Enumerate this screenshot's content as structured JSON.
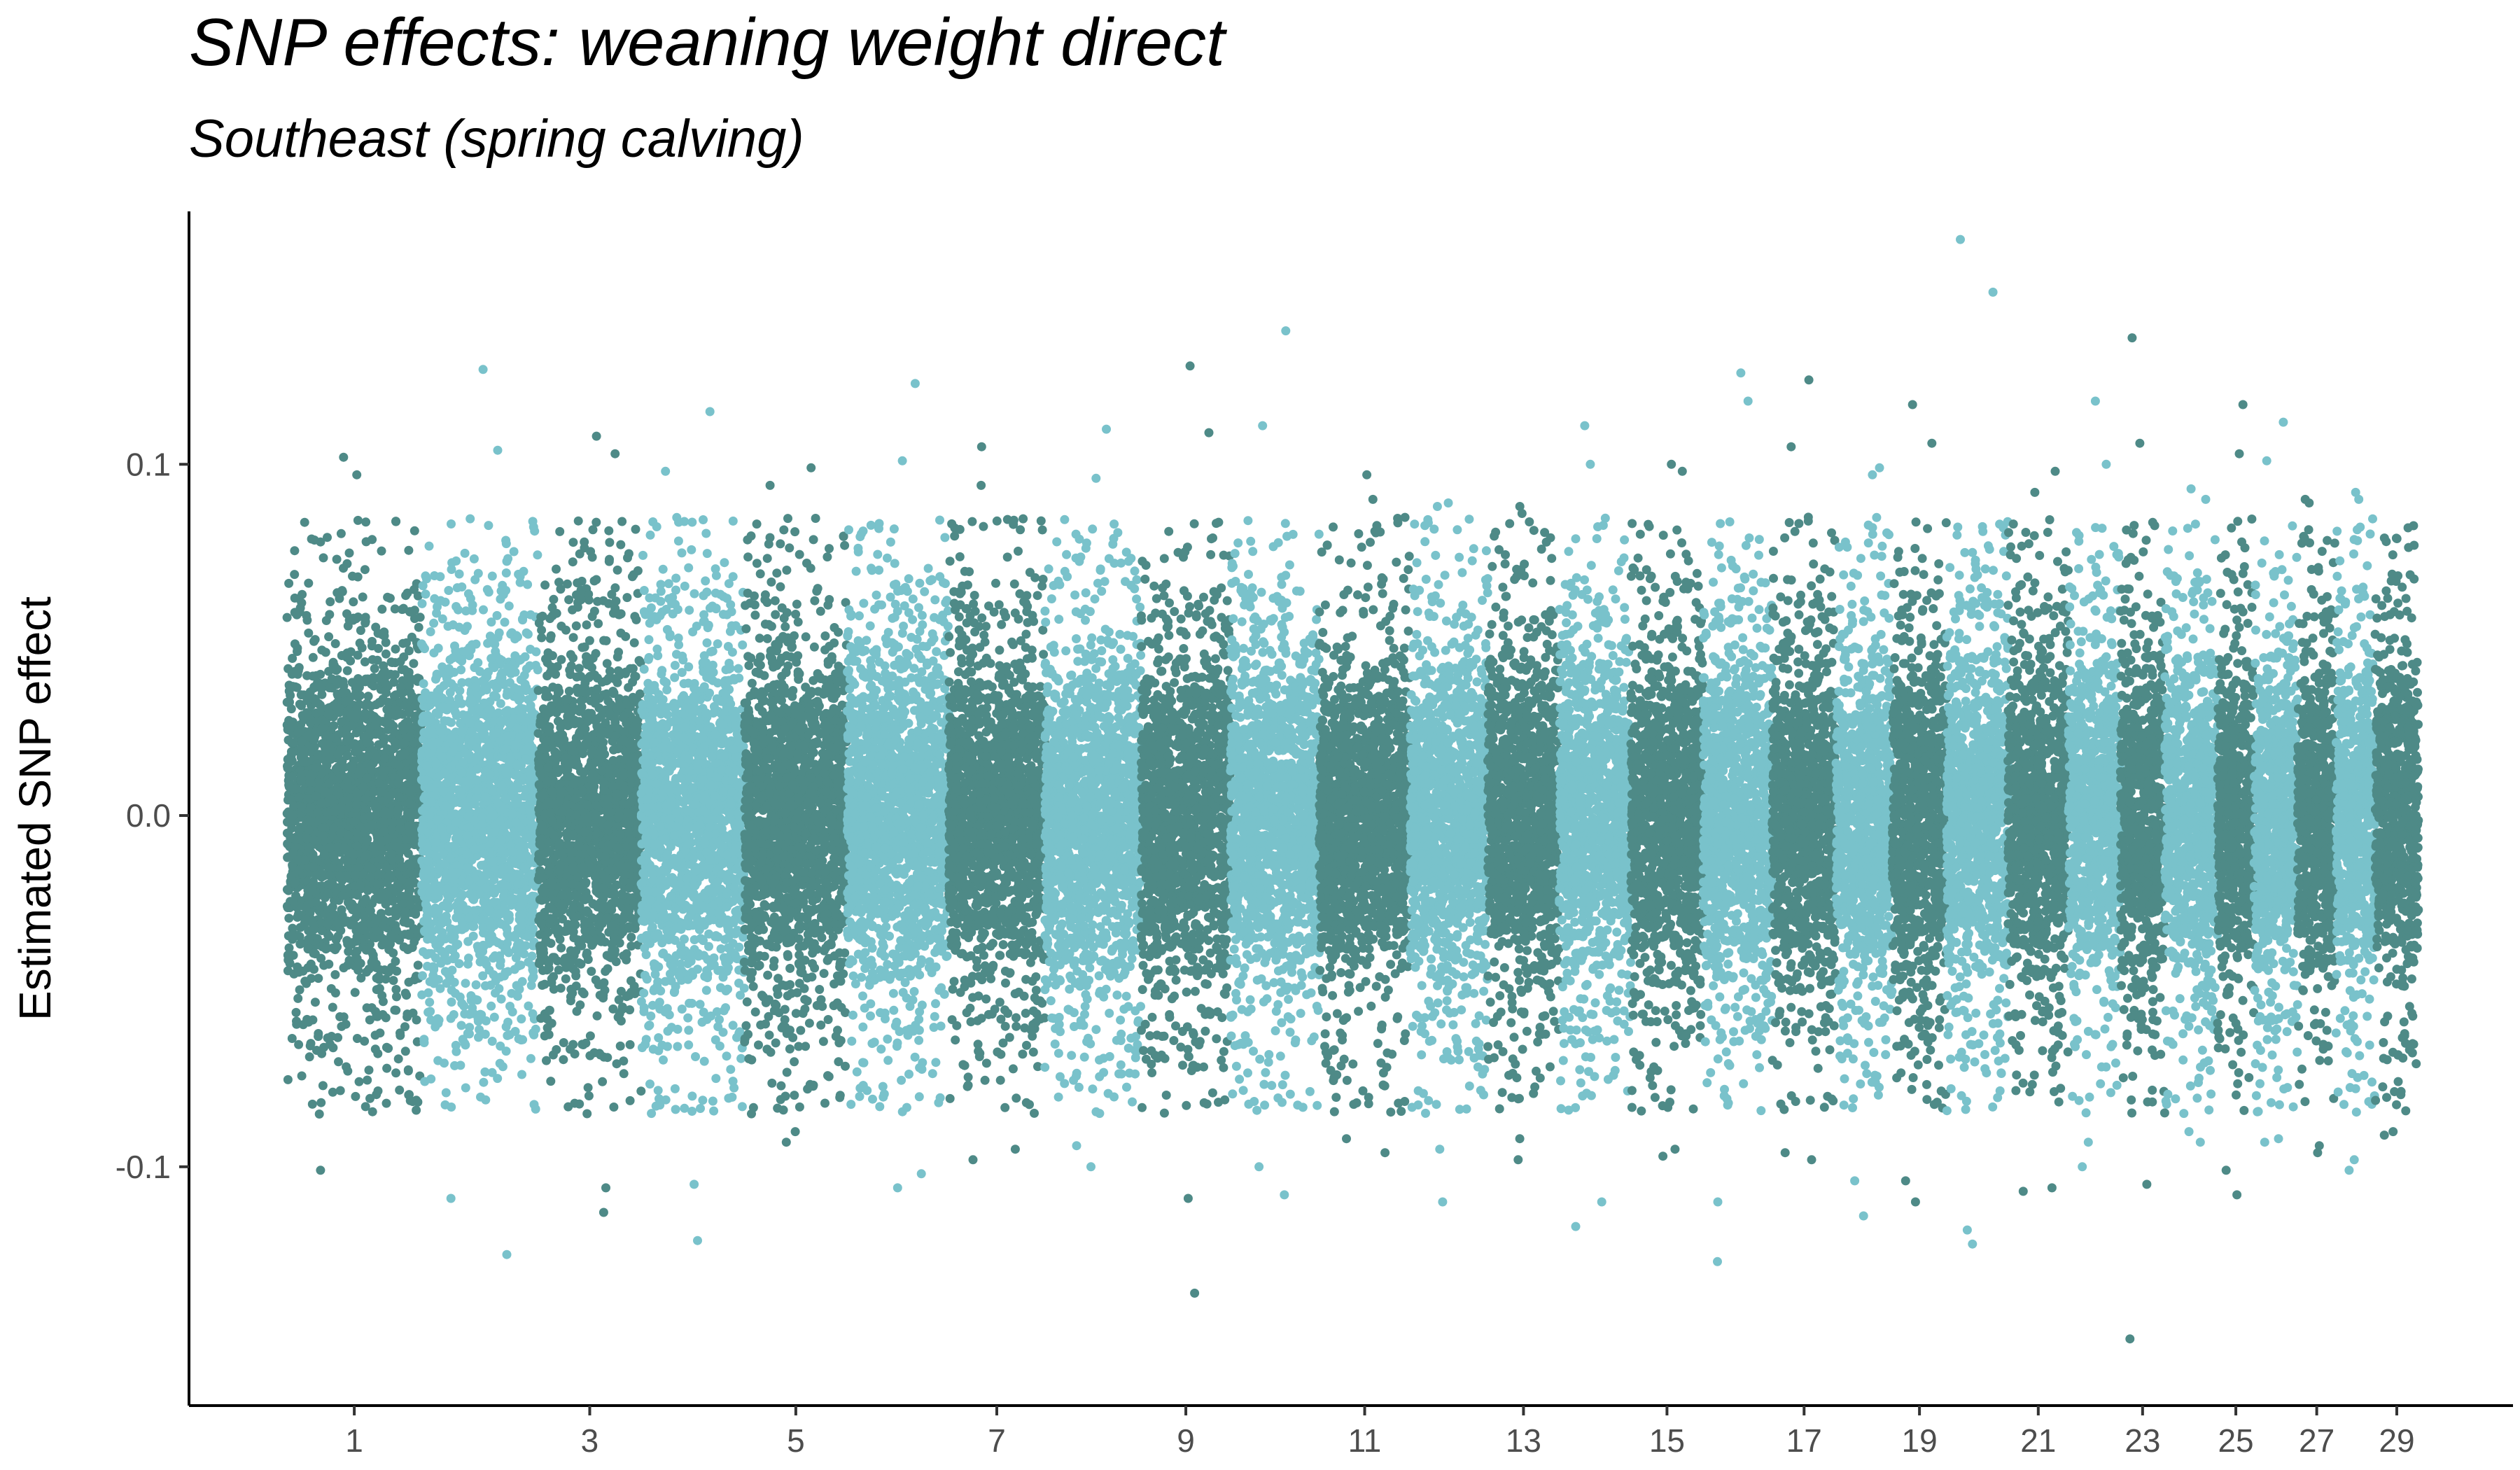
{
  "chart_data": {
    "type": "scatter",
    "subtype": "manhattan",
    "title": "SNP effects: weaning weight direct",
    "subtitle": "Southeast (spring calving)",
    "xlabel": "",
    "ylabel": "Estimated SNP effect",
    "ylim": [
      -0.168,
      0.172
    ],
    "y_ticks": [
      {
        "value": 0.1,
        "label": "0.1"
      },
      {
        "value": 0.0,
        "label": "0.0"
      },
      {
        "value": -0.1,
        "label": "-0.1"
      }
    ],
    "x_tick_labels": [
      "1",
      "3",
      "5",
      "7",
      "9",
      "11",
      "13",
      "15",
      "17",
      "19",
      "21",
      "23",
      "25",
      "27",
      "29"
    ],
    "colors": {
      "odd_chromosome": "#4e8a87",
      "even_chromosome": "#79c2cb"
    },
    "grid": false,
    "legend": "none",
    "chromosomes": [
      {
        "chr": 1,
        "rel_length": 158,
        "core_sd": 0.024,
        "extremes": [
          0.102,
          -0.101,
          0.097,
          -0.085
        ]
      },
      {
        "chr": 2,
        "rel_length": 137,
        "core_sd": 0.025,
        "extremes": [
          0.127,
          -0.125,
          0.104,
          -0.109
        ]
      },
      {
        "chr": 3,
        "rel_length": 121,
        "core_sd": 0.024,
        "extremes": [
          0.108,
          -0.113,
          0.103,
          -0.106
        ]
      },
      {
        "chr": 4,
        "rel_length": 121,
        "core_sd": 0.025,
        "extremes": [
          0.115,
          -0.121,
          0.098,
          -0.105
        ]
      },
      {
        "chr": 5,
        "rel_length": 121,
        "core_sd": 0.024,
        "extremes": [
          0.099,
          -0.093,
          0.094,
          -0.09
        ]
      },
      {
        "chr": 6,
        "rel_length": 119,
        "core_sd": 0.025,
        "extremes": [
          0.123,
          -0.106,
          0.101,
          -0.102
        ]
      },
      {
        "chr": 7,
        "rel_length": 113,
        "core_sd": 0.024,
        "extremes": [
          0.105,
          -0.098,
          0.094,
          -0.095
        ]
      },
      {
        "chr": 8,
        "rel_length": 113,
        "core_sd": 0.024,
        "extremes": [
          0.11,
          -0.1,
          0.096,
          -0.094
        ]
      },
      {
        "chr": 9,
        "rel_length": 105,
        "core_sd": 0.025,
        "extremes": [
          0.128,
          -0.136,
          0.109,
          -0.109
        ]
      },
      {
        "chr": 10,
        "rel_length": 104,
        "core_sd": 0.024,
        "extremes": [
          0.138,
          -0.108,
          0.111,
          -0.1
        ]
      },
      {
        "chr": 11,
        "rel_length": 107,
        "core_sd": 0.023,
        "extremes": [
          0.097,
          -0.096,
          0.09,
          -0.092
        ]
      },
      {
        "chr": 12,
        "rel_length": 91,
        "core_sd": 0.024,
        "extremes": [
          0.089,
          -0.11,
          0.088,
          -0.095
        ]
      },
      {
        "chr": 13,
        "rel_length": 84,
        "core_sd": 0.023,
        "extremes": [
          0.088,
          -0.098,
          0.086,
          -0.092
        ]
      },
      {
        "chr": 14,
        "rel_length": 84,
        "core_sd": 0.024,
        "extremes": [
          0.111,
          -0.117,
          0.1,
          -0.11
        ]
      },
      {
        "chr": 15,
        "rel_length": 85,
        "core_sd": 0.024,
        "extremes": [
          0.1,
          -0.097,
          0.098,
          -0.095
        ]
      },
      {
        "chr": 16,
        "rel_length": 81,
        "core_sd": 0.025,
        "extremes": [
          0.126,
          -0.127,
          0.118,
          -0.11
        ]
      },
      {
        "chr": 17,
        "rel_length": 75,
        "core_sd": 0.024,
        "extremes": [
          0.124,
          -0.098,
          0.105,
          -0.096
        ]
      },
      {
        "chr": 18,
        "rel_length": 66,
        "core_sd": 0.024,
        "extremes": [
          0.099,
          -0.114,
          0.097,
          -0.104
        ]
      },
      {
        "chr": 19,
        "rel_length": 64,
        "core_sd": 0.025,
        "extremes": [
          0.117,
          -0.11,
          0.106,
          -0.104
        ]
      },
      {
        "chr": 20,
        "rel_length": 72,
        "core_sd": 0.026,
        "extremes": [
          0.164,
          -0.122,
          0.149,
          -0.118
        ]
      },
      {
        "chr": 21,
        "rel_length": 71,
        "core_sd": 0.024,
        "extremes": [
          0.098,
          -0.107,
          0.092,
          -0.106
        ]
      },
      {
        "chr": 22,
        "rel_length": 61,
        "core_sd": 0.024,
        "extremes": [
          0.118,
          -0.1,
          0.1,
          -0.093
        ]
      },
      {
        "chr": 23,
        "rel_length": 52,
        "core_sd": 0.025,
        "extremes": [
          0.136,
          -0.149,
          0.106,
          -0.105
        ]
      },
      {
        "chr": 24,
        "rel_length": 62,
        "core_sd": 0.024,
        "extremes": [
          0.093,
          -0.093,
          0.09,
          -0.09
        ]
      },
      {
        "chr": 25,
        "rel_length": 43,
        "core_sd": 0.024,
        "extremes": [
          0.117,
          -0.108,
          0.103,
          -0.101
        ]
      },
      {
        "chr": 26,
        "rel_length": 51,
        "core_sd": 0.025,
        "extremes": [
          0.112,
          -0.093,
          0.101,
          -0.092
        ]
      },
      {
        "chr": 27,
        "rel_length": 45,
        "core_sd": 0.024,
        "extremes": [
          0.09,
          -0.096,
          0.089,
          -0.094
        ]
      },
      {
        "chr": 28,
        "rel_length": 46,
        "core_sd": 0.024,
        "extremes": [
          0.092,
          -0.101,
          0.09,
          -0.098
        ]
      },
      {
        "chr": 29,
        "rel_length": 51,
        "core_sd": 0.024,
        "extremes": [
          0.079,
          -0.091,
          0.078,
          -0.09
        ]
      }
    ]
  }
}
